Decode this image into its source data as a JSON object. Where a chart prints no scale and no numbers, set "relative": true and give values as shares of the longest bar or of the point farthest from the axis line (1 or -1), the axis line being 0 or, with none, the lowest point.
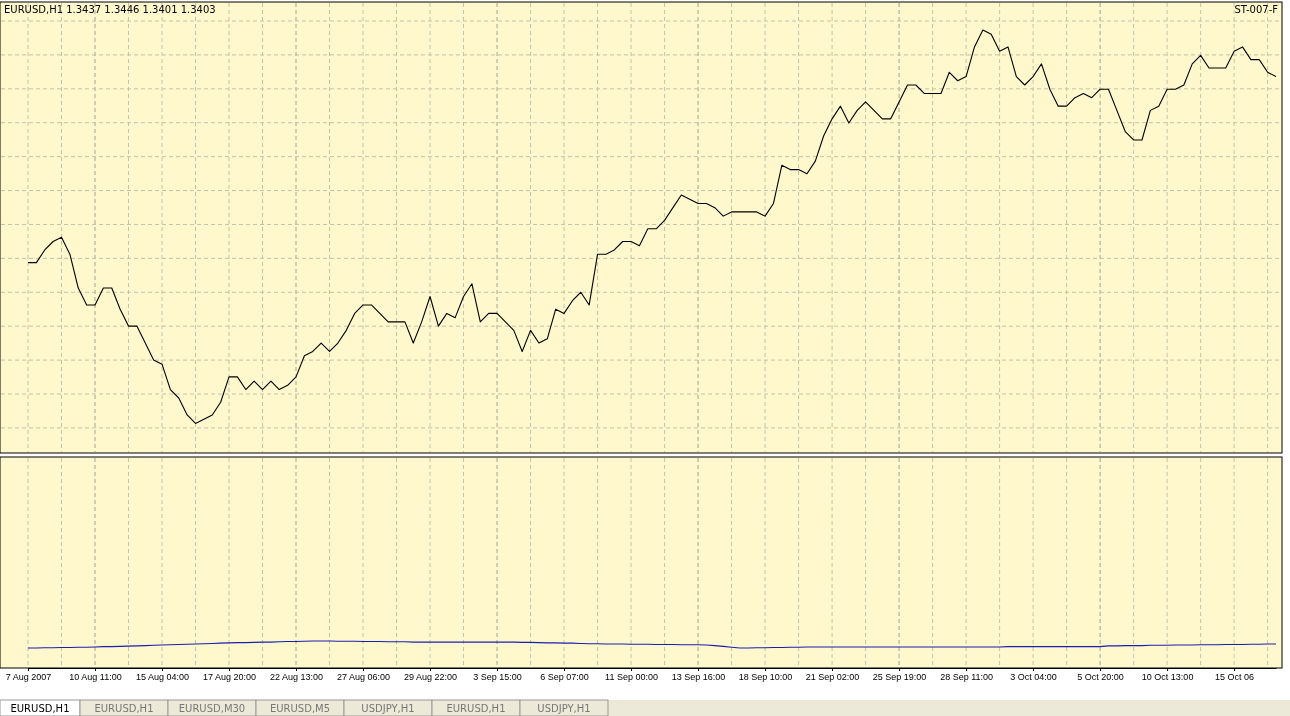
{
  "chart_data": [
    {
      "type": "line",
      "title": "EURUSD,H1  1.3437 1.3446 1.3401 1.3403",
      "annotations": [
        "ST-007-F"
      ],
      "relative": true,
      "grid": true,
      "categories": [
        null,
        null,
        null,
        null,
        null,
        null,
        null,
        null,
        null,
        null,
        null,
        null,
        null,
        null,
        null,
        null,
        null,
        null,
        null,
        null,
        null,
        null,
        null,
        null,
        null,
        null,
        null,
        null,
        null,
        null,
        null,
        null,
        null,
        null,
        null,
        null,
        null,
        null,
        null,
        null,
        null,
        null,
        null,
        null,
        null,
        null,
        null,
        null,
        null,
        null,
        null,
        null,
        null,
        null,
        null,
        null,
        null,
        null,
        null,
        null,
        null,
        null,
        null,
        null,
        null,
        null,
        null,
        null,
        null,
        null,
        null,
        null,
        null,
        null,
        null,
        null,
        null,
        null,
        null,
        null,
        null,
        null,
        null,
        null,
        null,
        null,
        null,
        null,
        null,
        null,
        null,
        null,
        null,
        null,
        null,
        null,
        null,
        null,
        null,
        null,
        null,
        null,
        null,
        null,
        null,
        null,
        null,
        null,
        null,
        null,
        null,
        null,
        null,
        null,
        null,
        null,
        null,
        null,
        null,
        null,
        null,
        null,
        null,
        null,
        null,
        null,
        null,
        null,
        null,
        null,
        null,
        null,
        null,
        null,
        null,
        null,
        null,
        null,
        null,
        null,
        null,
        null,
        null,
        null,
        null,
        null,
        null,
        null,
        null,
        null
      ],
      "series": [
        {
          "color": "#000000",
          "values": [
            0.45,
            0.45,
            0.48,
            0.5,
            0.51,
            0.47,
            0.39,
            0.35,
            0.35,
            0.39,
            0.39,
            0.34,
            0.3,
            0.3,
            0.26,
            0.22,
            0.21,
            0.15,
            0.13,
            0.09,
            0.07,
            0.08,
            0.09,
            0.12,
            0.18,
            0.18,
            0.15,
            0.17,
            0.15,
            0.17,
            0.15,
            0.16,
            0.18,
            0.23,
            0.24,
            0.26,
            0.24,
            0.26,
            0.29,
            0.33,
            0.35,
            0.35,
            0.33,
            0.31,
            0.31,
            0.31,
            0.26,
            0.31,
            0.37,
            0.3,
            0.33,
            0.32,
            0.37,
            0.4,
            0.31,
            0.33,
            0.33,
            0.31,
            0.29,
            0.24,
            0.29,
            0.26,
            0.27,
            0.34,
            0.33,
            0.36,
            0.38,
            0.35,
            0.47,
            0.47,
            0.48,
            0.5,
            0.5,
            0.49,
            0.53,
            0.53,
            0.55,
            0.58,
            0.61,
            0.6,
            0.59,
            0.59,
            0.58,
            0.56,
            0.57,
            0.57,
            0.57,
            0.57,
            0.56,
            0.59,
            0.68,
            0.67,
            0.67,
            0.66,
            0.69,
            0.75,
            0.79,
            0.82,
            0.78,
            0.81,
            0.83,
            0.81,
            0.79,
            0.79,
            0.83,
            0.87,
            0.87,
            0.85,
            0.85,
            0.85,
            0.9,
            0.88,
            0.89,
            0.96,
            1.0,
            0.99,
            0.95,
            0.96,
            0.89,
            0.87,
            0.89,
            0.92,
            0.86,
            0.82,
            0.82,
            0.84,
            0.85,
            0.84,
            0.86,
            0.86,
            0.81,
            0.76,
            0.74,
            0.74,
            0.81,
            0.82,
            0.86,
            0.86,
            0.87,
            0.92,
            0.94,
            0.91,
            0.91,
            0.91,
            0.95,
            0.96,
            0.93,
            0.93,
            0.9,
            0.89
          ]
        }
      ]
    },
    {
      "type": "line",
      "annotations": [
        "EURUSD,H1",
        "EURUSD,H1",
        "EURUSD,M30",
        "EURUSD,M5",
        "USDJPY,H1",
        "EURUSD,H1",
        "USDJPY,H1"
      ],
      "relative": true,
      "grid": "x",
      "categories": [
        "7 Aug 2007",
        null,
        null,
        null,
        null,
        null,
        null,
        null,
        "10 Aug 11:00",
        null,
        null,
        null,
        null,
        null,
        null,
        null,
        "15 Aug 04:00",
        null,
        null,
        null,
        null,
        null,
        null,
        null,
        "17 Aug 20:00",
        null,
        null,
        null,
        null,
        null,
        null,
        null,
        "22 Aug 13:00",
        null,
        null,
        null,
        null,
        null,
        null,
        null,
        "27 Aug 06:00",
        null,
        null,
        null,
        null,
        null,
        null,
        null,
        "29 Aug 22:00",
        null,
        null,
        null,
        null,
        null,
        null,
        null,
        "3 Sep 15:00",
        null,
        null,
        null,
        null,
        null,
        null,
        null,
        "6 Sep 07:00",
        null,
        null,
        null,
        null,
        null,
        null,
        null,
        "11 Sep 00:00",
        null,
        null,
        null,
        null,
        null,
        null,
        null,
        "13 Sep 16:00",
        null,
        null,
        null,
        null,
        null,
        null,
        null,
        "18 Sep 10:00",
        null,
        null,
        null,
        null,
        null,
        null,
        null,
        "21 Sep 02:00",
        null,
        null,
        null,
        null,
        null,
        null,
        null,
        "25 Sep 19:00",
        null,
        null,
        null,
        null,
        null,
        null,
        null,
        "28 Sep 11:00",
        null,
        null,
        null,
        null,
        null,
        null,
        null,
        "3 Oct 04:00",
        null,
        null,
        null,
        null,
        null,
        null,
        null,
        "5 Oct 20:00",
        null,
        null,
        null,
        null,
        null,
        null,
        null,
        "10 Oct 13:00",
        null,
        null,
        null,
        null,
        null,
        null,
        null,
        "15 Oct 06",
        null,
        null,
        null,
        null,
        null
      ],
      "series": [
        {
          "color": "#1c1cb0",
          "values": [
            0.74,
            0.74,
            0.75,
            0.75,
            0.76,
            0.76,
            0.77,
            0.77,
            0.78,
            0.79,
            0.79,
            0.8,
            0.81,
            0.82,
            0.83,
            0.84,
            0.85,
            0.86,
            0.87,
            0.88,
            0.89,
            0.9,
            0.91,
            0.92,
            0.93,
            0.94,
            0.94,
            0.95,
            0.96,
            0.96,
            0.97,
            0.98,
            0.98,
            0.99,
            1.0,
            1.0,
            1.0,
            0.99,
            0.99,
            0.99,
            0.98,
            0.98,
            0.98,
            0.97,
            0.97,
            0.97,
            0.96,
            0.96,
            0.96,
            0.96,
            0.96,
            0.96,
            0.96,
            0.96,
            0.96,
            0.96,
            0.96,
            0.96,
            0.96,
            0.95,
            0.95,
            0.94,
            0.93,
            0.93,
            0.92,
            0.92,
            0.91,
            0.9,
            0.9,
            0.89,
            0.89,
            0.89,
            0.88,
            0.88,
            0.88,
            0.87,
            0.87,
            0.87,
            0.86,
            0.86,
            0.86,
            0.85,
            0.83,
            0.8,
            0.77,
            0.74,
            0.74,
            0.75,
            0.75,
            0.76,
            0.76,
            0.77,
            0.77,
            0.78,
            0.78,
            0.78,
            0.78,
            0.78,
            0.78,
            0.78,
            0.78,
            0.78,
            0.78,
            0.78,
            0.78,
            0.78,
            0.78,
            0.78,
            0.78,
            0.78,
            0.78,
            0.78,
            0.78,
            0.78,
            0.78,
            0.78,
            0.78,
            0.79,
            0.79,
            0.79,
            0.79,
            0.79,
            0.79,
            0.79,
            0.79,
            0.79,
            0.79,
            0.79,
            0.79,
            0.82,
            0.82,
            0.83,
            0.83,
            0.83,
            0.84,
            0.84,
            0.84,
            0.85,
            0.85,
            0.85,
            0.86,
            0.86,
            0.86,
            0.87,
            0.87,
            0.87,
            0.88,
            0.88,
            0.89,
            0.89
          ]
        }
      ]
    }
  ]
}
